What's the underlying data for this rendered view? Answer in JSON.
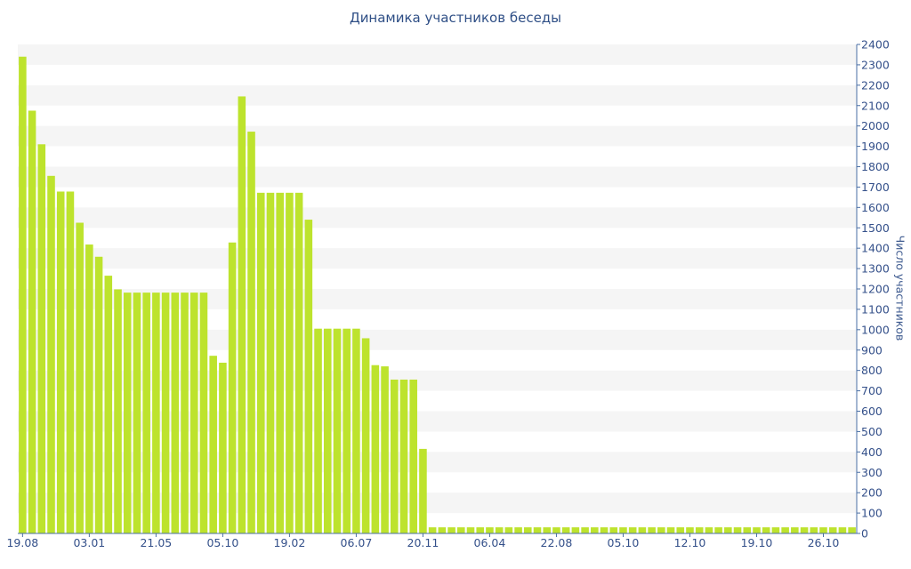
{
  "chart_data": {
    "type": "bar",
    "title": "Динамика участников беседы",
    "xlabel": "",
    "ylabel": "Число участников",
    "ylim": [
      0,
      2400
    ],
    "yticks": [
      0,
      100,
      200,
      300,
      400,
      500,
      600,
      700,
      800,
      900,
      1000,
      1100,
      1200,
      1300,
      1400,
      1500,
      1600,
      1700,
      1800,
      1900,
      2000,
      2100,
      2200,
      2300,
      2400
    ],
    "y_axis_side": "right",
    "grid": "horizontal bands",
    "legend": "none",
    "bar_color": "#bde32d",
    "x_tick_labels": [
      {
        "label": "19.08",
        "index": 0
      },
      {
        "label": "03.01",
        "index": 7
      },
      {
        "label": "21.05",
        "index": 14
      },
      {
        "label": "05.10",
        "index": 21
      },
      {
        "label": "19.02",
        "index": 28
      },
      {
        "label": "06.07",
        "index": 35
      },
      {
        "label": "20.11",
        "index": 42
      },
      {
        "label": "06.04",
        "index": 49
      },
      {
        "label": "22.08",
        "index": 56
      },
      {
        "label": "05.10",
        "index": 63
      },
      {
        "label": "12.10",
        "index": 70
      },
      {
        "label": "19.10",
        "index": 77
      },
      {
        "label": "26.10",
        "index": 84
      }
    ],
    "values": [
      2340,
      2075,
      1910,
      1755,
      1678,
      1678,
      1525,
      1418,
      1358,
      1265,
      1198,
      1182,
      1182,
      1182,
      1182,
      1182,
      1182,
      1182,
      1182,
      1182,
      872,
      838,
      1428,
      2145,
      1972,
      1672,
      1672,
      1672,
      1672,
      1672,
      1540,
      1005,
      1005,
      1005,
      1005,
      1005,
      958,
      826,
      820,
      755,
      755,
      755,
      415,
      30,
      30,
      30,
      30,
      30,
      30,
      30,
      30,
      30,
      30,
      30,
      30,
      30,
      30,
      30,
      30,
      30,
      30,
      30,
      30,
      30,
      30,
      30,
      30,
      30,
      30,
      30,
      30,
      30,
      30,
      30,
      30,
      30,
      30,
      30,
      30,
      30,
      30,
      30,
      30,
      30,
      30,
      30,
      30,
      30
    ]
  }
}
